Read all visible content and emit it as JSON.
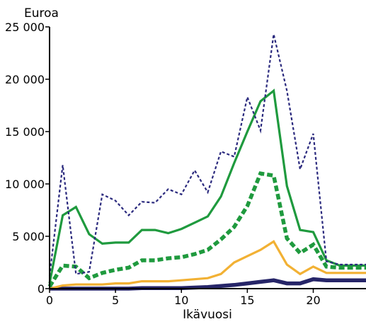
{
  "chart_data": {
    "type": "line",
    "title": "",
    "ylabel": "Euroa",
    "xlabel": "Ikävuosi",
    "xlim": [
      0,
      24
    ],
    "ylim": [
      0,
      25000
    ],
    "grid": false,
    "legend": "none",
    "x_ticks": [
      0,
      5,
      10,
      15,
      20
    ],
    "x_tick_labels": [
      "0",
      "5",
      "10",
      "15",
      "20"
    ],
    "y_ticks": [
      0,
      5000,
      10000,
      15000,
      20000,
      25000
    ],
    "y_tick_labels": [
      "0",
      "5 000",
      "10 000",
      "15 000",
      "20 000",
      "25 000"
    ],
    "x": [
      0,
      1,
      2,
      3,
      4,
      5,
      6,
      7,
      8,
      9,
      10,
      11,
      12,
      13,
      14,
      15,
      16,
      17,
      18,
      19,
      20,
      21,
      22,
      23,
      24
    ],
    "series": [
      {
        "color": "#2b2a7e",
        "style": "dotted",
        "values": [
          1200,
          11800,
          1400,
          1600,
          9000,
          8400,
          7000,
          8300,
          8200,
          9500,
          9000,
          11300,
          9200,
          13100,
          12600,
          18300,
          15100,
          24300,
          18900,
          11400,
          14800,
          2600,
          2300,
          2300,
          2300
        ]
      },
      {
        "color": "#1f9a3e",
        "style": "solid",
        "values": [
          500,
          7000,
          7800,
          5200,
          4300,
          4400,
          4400,
          5600,
          5600,
          5300,
          5700,
          6300,
          6900,
          8800,
          12000,
          15000,
          17900,
          18900,
          9800,
          5600,
          5400,
          2700,
          2200,
          2200,
          2200
        ]
      },
      {
        "color": "#1f9a3e",
        "style": "dashed",
        "values": [
          200,
          2200,
          2100,
          1000,
          1500,
          1800,
          2000,
          2700,
          2700,
          2900,
          3000,
          3300,
          3700,
          4700,
          5900,
          7900,
          11000,
          10800,
          4800,
          3400,
          4200,
          2100,
          2000,
          2000,
          2000
        ]
      },
      {
        "color": "#f2b134",
        "style": "solid",
        "values": [
          0,
          300,
          400,
          400,
          400,
          500,
          500,
          700,
          700,
          700,
          800,
          900,
          1000,
          1400,
          2500,
          3100,
          3700,
          4500,
          2300,
          1400,
          2100,
          1500,
          1500,
          1500,
          1500
        ]
      },
      {
        "color": "#262568",
        "style": "thick",
        "values": [
          0,
          0,
          0,
          0,
          0,
          0,
          0,
          50,
          50,
          50,
          50,
          100,
          150,
          250,
          350,
          500,
          650,
          800,
          500,
          500,
          900,
          800,
          800,
          800,
          800
        ]
      }
    ]
  }
}
